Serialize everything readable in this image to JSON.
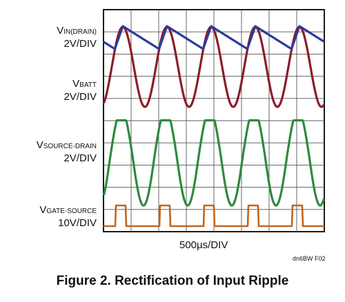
{
  "chart_data": {
    "type": "line",
    "title": "",
    "caption": "Figure 2. Rectification of Input Ripple",
    "figure_id": "dn6BW F02",
    "xlabel": "500µs/DIV",
    "x_divisions": 8,
    "y_divisions": 10,
    "grid": true,
    "channels": [
      {
        "symbol": "V",
        "subscript": "IN(DRAIN)",
        "scale": "2V/DIV",
        "color": "#2b3a9c",
        "waveform": "sawtooth",
        "periods_visible": 5
      },
      {
        "symbol": "V",
        "subscript": "BATT",
        "scale": "2V/DIV",
        "color": "#8c1c2a",
        "waveform": "sine",
        "periods_visible": 5
      },
      {
        "symbol": "V",
        "subscript": "SOURCE-DRAIN",
        "scale": "2V/DIV",
        "color": "#2e8a3c",
        "waveform": "clipped-sine",
        "periods_visible": 5
      },
      {
        "symbol": "V",
        "subscript": "GATE-SOURCE",
        "scale": "10V/DIV",
        "color": "#c4641c",
        "waveform": "pulse",
        "periods_visible": 5
      }
    ]
  }
}
